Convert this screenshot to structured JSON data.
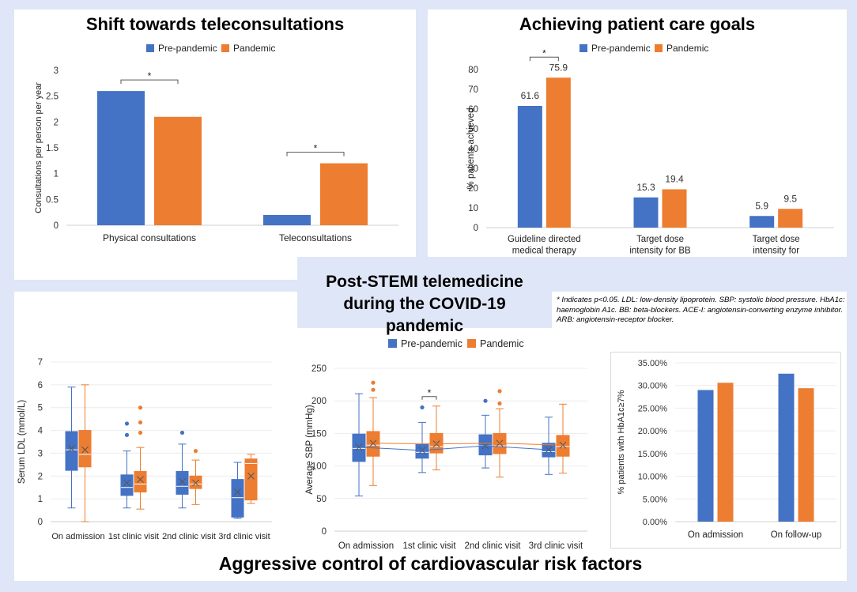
{
  "figure": {
    "center_title": "Post-STEMI telemedicine during the COVID-19 pandemic",
    "bottom_title": "Aggressive control of cardiovascular risk factors",
    "footnote": "* Indicates p<0.05. LDL: low-density lipoprotein. SBP: systolic blood pressure. HbA1c: haemoglobin A1c. BB: beta-blockers. ACE-I: angiotensin-converting enzyme inhibitor. ARB: angiotensin-receptor blocker.",
    "colors": {
      "pre": "#4472c4",
      "pandemic": "#ed7d31",
      "background": "#dfe6f7"
    }
  },
  "chart_data": [
    {
      "id": "teleconsult",
      "type": "bar",
      "title": "Shift towards teleconsultations",
      "ylabel": "Consultations per person per year",
      "categories": [
        "Physical consultations",
        "Teleconsultations"
      ],
      "series": [
        {
          "name": "Pre-pandemic",
          "values": [
            2.6,
            0.2
          ]
        },
        {
          "name": "Pandemic",
          "values": [
            2.1,
            1.2
          ]
        }
      ],
      "ylim": [
        0,
        3
      ],
      "yticks": [
        "0",
        "0.5",
        "1",
        "1.5",
        "2",
        "2.5",
        "3"
      ],
      "significance": [
        "*",
        "*"
      ],
      "legend": "top"
    },
    {
      "id": "caregoals",
      "type": "bar",
      "title": "Achieving patient care goals",
      "ylabel": "% patients achieved",
      "categories": [
        "Guideline directed medical therapy",
        "Target dose intensity for BB",
        "Target dose intensity for ACEi/ARB"
      ],
      "series": [
        {
          "name": "Pre-pandemic",
          "values": [
            61.6,
            15.3,
            5.9
          ],
          "labels": [
            "61.6",
            "15.3",
            "5.9"
          ]
        },
        {
          "name": "Pandemic",
          "values": [
            75.9,
            19.4,
            9.5
          ],
          "labels": [
            "75.9",
            "19.4",
            "9.5"
          ]
        }
      ],
      "ylim": [
        0,
        80
      ],
      "yticks": [
        "0",
        "10",
        "20",
        "30",
        "40",
        "50",
        "60",
        "70",
        "80"
      ],
      "significance": [
        "*",
        "",
        ""
      ],
      "legend": "top"
    },
    {
      "id": "ldl",
      "type": "box",
      "ylabel": "Serum LDL (mmol/L)",
      "categories": [
        "On admission",
        "1st clinic visit",
        "2nd clinic visit",
        "3rd clinic visit"
      ],
      "ylim": [
        0,
        7
      ],
      "yticks": [
        "0",
        "1",
        "2",
        "3",
        "4",
        "5",
        "6",
        "7"
      ],
      "series": [
        {
          "name": "Pre-pandemic",
          "boxes": [
            {
              "min": 0.6,
              "q1": 2.25,
              "median": 3.15,
              "q3": 3.95,
              "max": 5.9,
              "mean": 3.2,
              "outliers": []
            },
            {
              "min": 0.6,
              "q1": 1.15,
              "median": 1.5,
              "q3": 2.05,
              "max": 3.1,
              "mean": 1.7,
              "outliers": [
                3.8,
                4.3
              ]
            },
            {
              "min": 0.6,
              "q1": 1.2,
              "median": 1.55,
              "q3": 2.2,
              "max": 3.4,
              "mean": 1.75,
              "outliers": [
                3.9
              ]
            },
            {
              "min": 0.15,
              "q1": 0.2,
              "median": 1.05,
              "q3": 1.85,
              "max": 2.6,
              "mean": 1.3,
              "outliers": []
            }
          ]
        },
        {
          "name": "Pandemic",
          "boxes": [
            {
              "min": 0.0,
              "q1": 2.4,
              "median": 2.95,
              "q3": 4.0,
              "max": 6.0,
              "mean": 3.15,
              "outliers": []
            },
            {
              "min": 0.55,
              "q1": 1.3,
              "median": 1.65,
              "q3": 2.2,
              "max": 3.25,
              "mean": 1.85,
              "outliers": [
                3.9,
                4.35,
                5.0
              ]
            },
            {
              "min": 0.75,
              "q1": 1.45,
              "median": 1.65,
              "q3": 2.0,
              "max": 2.7,
              "mean": 1.7,
              "outliers": [
                3.1
              ]
            },
            {
              "min": 0.8,
              "q1": 0.95,
              "median": 2.55,
              "q3": 2.75,
              "max": 2.95,
              "mean": 2.0,
              "outliers": []
            }
          ]
        }
      ]
    },
    {
      "id": "sbp",
      "type": "box",
      "ylabel": "Average SBP (mmHg)",
      "categories": [
        "On admission",
        "1st clinic visit",
        "2nd clinic visit",
        "3rd clinic visit"
      ],
      "ylim": [
        0,
        250
      ],
      "yticks": [
        "0",
        "50",
        "100",
        "150",
        "200",
        "250"
      ],
      "series": [
        {
          "name": "Pre-pandemic",
          "boxes": [
            {
              "min": 54,
              "q1": 107,
              "median": 127,
              "q3": 149,
              "max": 211,
              "mean": 129,
              "outliers": []
            },
            {
              "min": 90,
              "q1": 112,
              "median": 121,
              "q3": 133,
              "max": 167,
              "mean": 124,
              "outliers": [
                190
              ]
            },
            {
              "min": 97,
              "q1": 117,
              "median": 131,
              "q3": 148,
              "max": 178,
              "mean": 131,
              "outliers": [
                200
              ]
            },
            {
              "min": 87,
              "q1": 114,
              "median": 122,
              "q3": 135,
              "max": 175,
              "mean": 125,
              "outliers": []
            }
          ]
        },
        {
          "name": "Pandemic",
          "boxes": [
            {
              "min": 70,
              "q1": 115,
              "median": 132,
              "q3": 153,
              "max": 205,
              "mean": 135,
              "outliers": [
                217,
                228
              ]
            },
            {
              "min": 94,
              "q1": 120,
              "median": 130,
              "q3": 150,
              "max": 192,
              "mean": 134,
              "outliers": []
            },
            {
              "min": 83,
              "q1": 119,
              "median": 131,
              "q3": 150,
              "max": 188,
              "mean": 135,
              "outliers": [
                196,
                215
              ]
            },
            {
              "min": 89,
              "q1": 115,
              "median": 130,
              "q3": 147,
              "max": 195,
              "mean": 132,
              "outliers": []
            }
          ]
        }
      ],
      "significance": [
        "",
        "*",
        "",
        ""
      ],
      "legend": "top"
    },
    {
      "id": "hba1c",
      "type": "bar",
      "ylabel": "% patients with HbA1c≥7%",
      "categories": [
        "On admission",
        "On follow-up"
      ],
      "series": [
        {
          "name": "Pre-pandemic",
          "values": [
            29.0,
            32.6
          ]
        },
        {
          "name": "Pandemic",
          "values": [
            30.6,
            29.4
          ]
        }
      ],
      "ylim": [
        0,
        35
      ],
      "yticks": [
        "0.00%",
        "5.00%",
        "10.00%",
        "15.00%",
        "20.00%",
        "25.00%",
        "30.00%",
        "35.00%"
      ]
    }
  ]
}
